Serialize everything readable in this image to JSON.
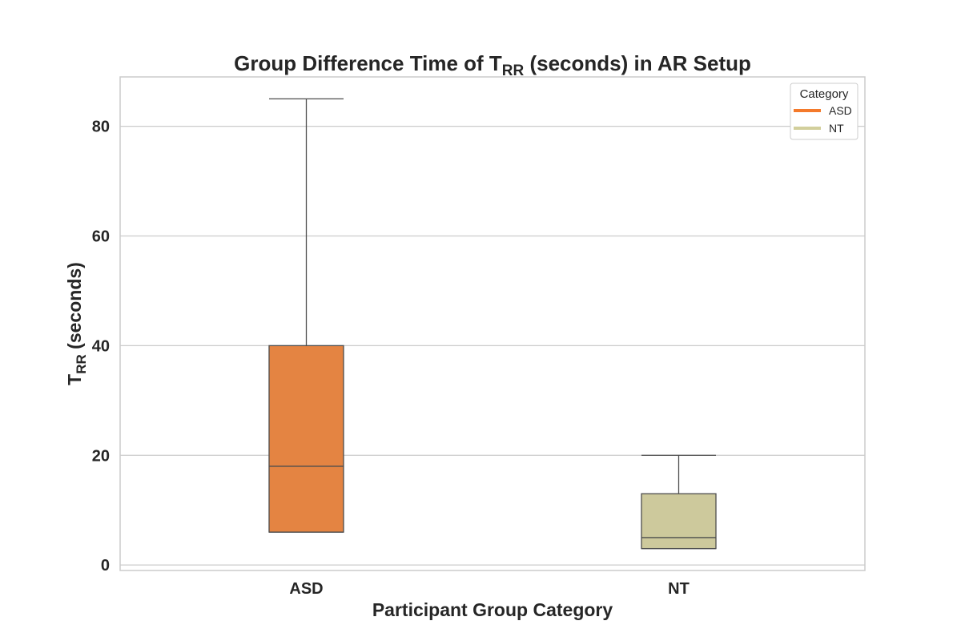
{
  "chart_data": {
    "type": "box",
    "title_main": "Group Difference Time of T",
    "title_sub": "RR",
    "title_rest": " (seconds) in AR Setup",
    "xlabel": "Participant Group Category",
    "ylabel_main": "T",
    "ylabel_sub": "RR",
    "ylabel_rest": " (seconds)",
    "ylim": [
      -1,
      89
    ],
    "yticks": [
      0,
      20,
      40,
      60,
      80
    ],
    "grid": true,
    "categories": [
      "ASD",
      "NT"
    ],
    "boxes": [
      {
        "category": "ASD",
        "whisker_low": 6,
        "q1": 6,
        "median": 18,
        "q3": 40,
        "whisker_high": 85,
        "color": "#e48442"
      },
      {
        "category": "NT",
        "whisker_low": 3,
        "q1": 3,
        "median": 5,
        "q3": 13,
        "whisker_high": 20,
        "color": "#cdc99c"
      }
    ],
    "legend": {
      "title": "Category",
      "position": "top-right",
      "entries": [
        {
          "label": "ASD",
          "color": "#f47a2b"
        },
        {
          "label": "NT",
          "color": "#d2cf9c"
        }
      ]
    }
  }
}
